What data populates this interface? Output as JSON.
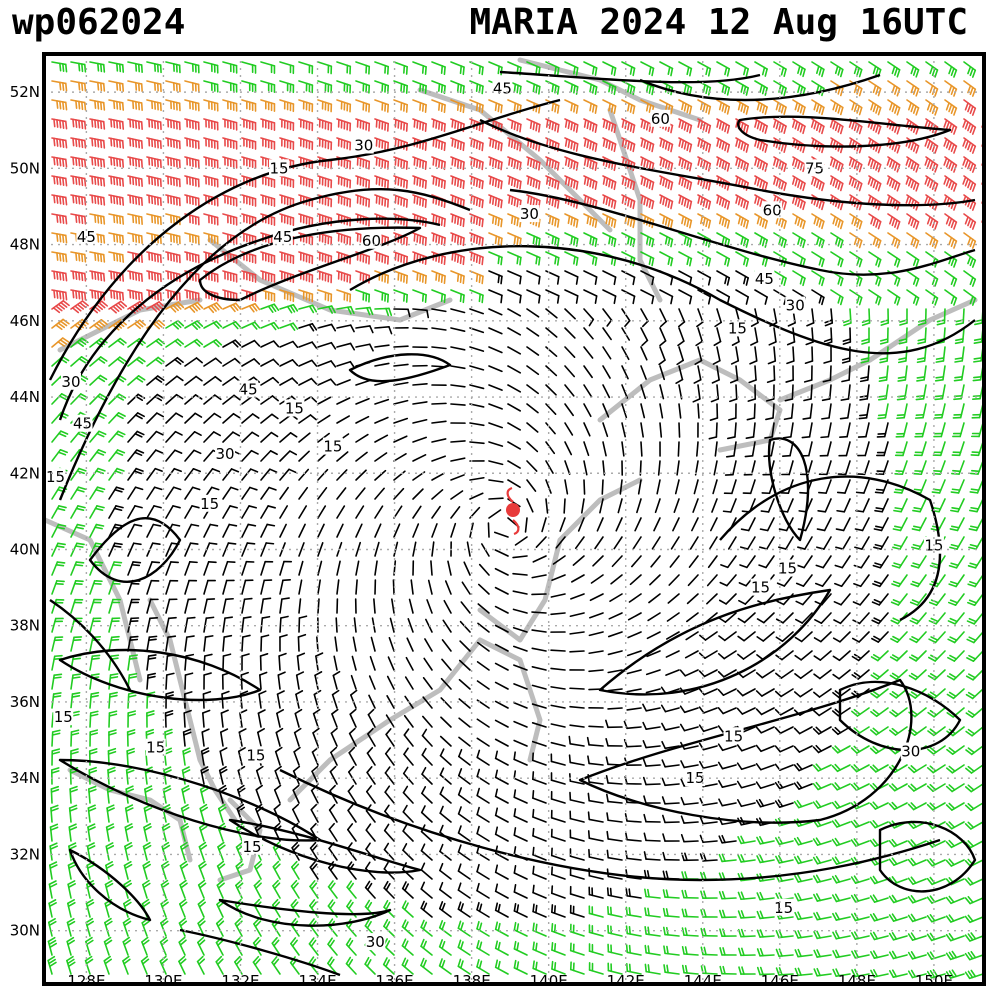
{
  "header": {
    "storm_id": "wp062024",
    "title": "MARIA 2024 12 Aug 16UTC"
  },
  "axes": {
    "lat_labels": [
      "52N",
      "50N",
      "48N",
      "46N",
      "44N",
      "42N",
      "40N",
      "38N",
      "36N",
      "34N",
      "32N",
      "30N"
    ],
    "lon_labels": [
      "128E",
      "130E",
      "132E",
      "134E",
      "136E",
      "138E",
      "140E",
      "142E",
      "144E",
      "146E",
      "148E",
      "150E"
    ],
    "lat_values": [
      52,
      50,
      48,
      46,
      44,
      42,
      40,
      38,
      36,
      34,
      32,
      30
    ],
    "lon_values": [
      128,
      130,
      132,
      134,
      136,
      138,
      140,
      142,
      144,
      146,
      148,
      150
    ],
    "lat_range": [
      28.6,
      53.0
    ],
    "lon_range": [
      126.9,
      151.3
    ],
    "grid": "dotted"
  },
  "storm": {
    "name": "MARIA",
    "center_lat": 40.6,
    "center_lon": 138.9,
    "marker_color": "#e83a3a",
    "symbol": "tropical-cyclone-icon"
  },
  "wind_colors": {
    "calm": "#000000",
    "green": "#22cc22",
    "orange": "#e8962a",
    "red": "#e84a4a",
    "land": "#bdbdbd",
    "contour": "#000000"
  },
  "contour_labels": [
    {
      "text": "45",
      "lat": 52.1,
      "lon": 138.8
    },
    {
      "text": "60",
      "lat": 51.3,
      "lon": 142.9
    },
    {
      "text": "30",
      "lat": 50.6,
      "lon": 135.2
    },
    {
      "text": "15",
      "lat": 50.0,
      "lon": 133.0
    },
    {
      "text": "75",
      "lat": 50.0,
      "lon": 146.9
    },
    {
      "text": "60",
      "lat": 48.9,
      "lon": 145.8
    },
    {
      "text": "30",
      "lat": 48.8,
      "lon": 139.5
    },
    {
      "text": "45",
      "lat": 48.2,
      "lon": 133.1
    },
    {
      "text": "60",
      "lat": 48.1,
      "lon": 135.4
    },
    {
      "text": "45",
      "lat": 48.2,
      "lon": 128.0
    },
    {
      "text": "45",
      "lat": 47.1,
      "lon": 145.6
    },
    {
      "text": "30",
      "lat": 46.4,
      "lon": 146.4
    },
    {
      "text": "15",
      "lat": 45.8,
      "lon": 144.9
    },
    {
      "text": "30",
      "lat": 44.4,
      "lon": 127.6
    },
    {
      "text": "45",
      "lat": 44.2,
      "lon": 132.2
    },
    {
      "text": "45",
      "lat": 43.3,
      "lon": 127.9
    },
    {
      "text": "15",
      "lat": 43.7,
      "lon": 133.4
    },
    {
      "text": "15",
      "lat": 42.7,
      "lon": 134.4
    },
    {
      "text": "30",
      "lat": 42.5,
      "lon": 131.6
    },
    {
      "text": "15",
      "lat": 41.9,
      "lon": 127.2
    },
    {
      "text": "15",
      "lat": 41.2,
      "lon": 131.2
    },
    {
      "text": "15",
      "lat": 40.1,
      "lon": 150.0
    },
    {
      "text": "15",
      "lat": 39.5,
      "lon": 146.2
    },
    {
      "text": "15",
      "lat": 39.0,
      "lon": 145.5
    },
    {
      "text": "15",
      "lat": 35.6,
      "lon": 127.4
    },
    {
      "text": "15",
      "lat": 35.1,
      "lon": 144.8
    },
    {
      "text": "15",
      "lat": 34.8,
      "lon": 129.8
    },
    {
      "text": "15",
      "lat": 34.6,
      "lon": 132.4
    },
    {
      "text": "30",
      "lat": 34.7,
      "lon": 149.4
    },
    {
      "text": "15",
      "lat": 34.0,
      "lon": 143.8
    },
    {
      "text": "15",
      "lat": 32.2,
      "lon": 132.3
    },
    {
      "text": "15",
      "lat": 30.6,
      "lon": 146.1
    },
    {
      "text": "30",
      "lat": 29.7,
      "lon": 135.5
    }
  ]
}
